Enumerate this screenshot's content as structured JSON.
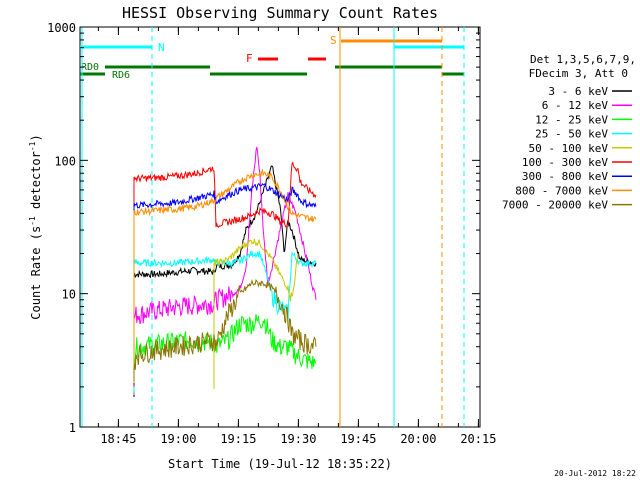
{
  "chart_data": {
    "type": "line",
    "title": "HESSI Observing Summary Count Rates",
    "xlabel": "Start Time (19-Jul-12 18:35:22)",
    "ylabel_main": "Count Rate (s",
    "ylabel_sup1": "-1",
    "ylabel_mid": " detector",
    "ylabel_sup2": "-1",
    "ylabel_end": ")",
    "yscale": "log",
    "ylim": [
      1,
      1000
    ],
    "xlim_minutes": [
      0,
      100
    ],
    "x_tick_labels": [
      "18:45",
      "19:00",
      "19:15",
      "19:30",
      "19:45",
      "20:00",
      "20:15"
    ],
    "x_ticks_minutes": [
      9.6,
      24.6,
      39.6,
      54.6,
      69.6,
      84.6,
      99.6
    ],
    "y_tick_labels": [
      "1",
      "10",
      "100",
      "1000"
    ],
    "y_ticks": [
      1,
      10,
      100,
      1000
    ],
    "legend_header": [
      "Det 1,3,5,6,7,9,",
      "FDecim 3, Att 0"
    ],
    "series": [
      {
        "name": "3 - 6 keV",
        "color": "#000000",
        "x": [
          13.5,
          14,
          19,
          19.5,
          24,
          29,
          33.5,
          34,
          38,
          40,
          41.5,
          44,
          46,
          48,
          50,
          50.6,
          51,
          52,
          53,
          54.6,
          55,
          59
        ],
        "y": [
          14,
          14,
          14,
          14,
          14.5,
          15,
          14.5,
          16,
          16.5,
          20,
          30,
          40,
          60,
          90,
          45,
          30,
          20,
          35,
          30,
          20,
          18,
          17
        ]
      },
      {
        "name": "6 - 12 keV",
        "color": "#ff00ff",
        "x": [
          13.5,
          14,
          19,
          24,
          29,
          33.5,
          34,
          38,
          40,
          41.5,
          43,
          44.2,
          45,
          46,
          47,
          48,
          50,
          52,
          54,
          56,
          58,
          59
        ],
        "y": [
          6.5,
          7,
          7.5,
          8,
          8.3,
          8.5,
          9,
          10,
          11,
          16,
          60,
          130,
          75,
          25,
          12,
          16,
          30,
          55,
          40,
          22,
          12,
          9
        ]
      },
      {
        "name": "12 - 25 keV",
        "color": "#00ff00",
        "x": [
          13.5,
          14,
          19,
          24,
          29,
          33.5,
          34,
          37,
          40,
          43,
          46,
          48,
          50,
          52,
          54,
          56,
          59
        ],
        "y": [
          3.2,
          4,
          4.2,
          4.4,
          4.5,
          4.3,
          4,
          4.5,
          6,
          6,
          6.5,
          4.5,
          4,
          4,
          3.5,
          3.2,
          3
        ]
      },
      {
        "name": "25 - 50 keV",
        "color": "#00ffff",
        "x": [
          13.5,
          14,
          19,
          24,
          29,
          33.5,
          34,
          38,
          40,
          43,
          45,
          48,
          50,
          52,
          53,
          55,
          57,
          59
        ],
        "y": [
          17,
          17,
          17,
          17,
          17.5,
          18,
          17,
          17,
          17.5,
          20,
          20,
          10,
          8,
          7,
          20,
          17,
          17,
          17
        ]
      },
      {
        "name": "50 - 100 keV",
        "color": "#c8c800",
        "x": [
          33.5,
          34,
          37,
          40,
          43,
          45,
          48,
          50,
          52,
          53,
          54.5
        ],
        "y": [
          17,
          17,
          18,
          22,
          25,
          24,
          18,
          14,
          11,
          9,
          20
        ]
      },
      {
        "name": "100 - 300 keV",
        "color": "#ff0000",
        "x": [
          13.5,
          14,
          19,
          24,
          29,
          33.5,
          34,
          38,
          42,
          45,
          48,
          50,
          52,
          53,
          54.5,
          55,
          57,
          59
        ],
        "y": [
          75,
          73,
          74,
          76,
          80,
          88,
          33,
          35,
          38,
          42,
          40,
          35,
          33,
          95,
          85,
          70,
          60,
          55
        ]
      },
      {
        "name": "300 - 800 keV",
        "color": "#0000ff",
        "x": [
          13.5,
          14,
          19,
          24,
          29,
          33.5,
          34,
          37,
          40,
          43,
          46,
          48,
          50,
          52,
          53,
          54.5,
          55,
          57,
          59
        ],
        "y": [
          47,
          46,
          47,
          48,
          52,
          56,
          49,
          55,
          60,
          62,
          65,
          60,
          55,
          50,
          60,
          55,
          50,
          47,
          45
        ]
      },
      {
        "name": "800 - 7000 keV",
        "color": "#ff8c00",
        "x": [
          13.5,
          14,
          19,
          24,
          29,
          33.5,
          34,
          37,
          40,
          43,
          46,
          48,
          50,
          52,
          53,
          55,
          57,
          59
        ],
        "y": [
          42,
          41,
          42,
          43,
          45,
          50,
          52,
          60,
          70,
          78,
          80,
          75,
          60,
          45,
          40,
          38,
          37,
          36
        ]
      },
      {
        "name": "7000 - 20000 keV",
        "color": "#8b7500",
        "x": [
          13.5,
          14,
          19,
          24,
          29,
          33.5,
          34,
          37,
          40,
          43,
          46,
          48,
          50,
          52,
          53,
          55,
          57,
          59
        ],
        "y": [
          2.8,
          3.5,
          3.8,
          4,
          4.3,
          4.5,
          4.2,
          7,
          10,
          12,
          12,
          11,
          9,
          6.5,
          5,
          4.5,
          4.2,
          4
        ]
      }
    ],
    "annotations": {
      "N_label": "N",
      "S_label": "S",
      "F_label": "F",
      "RD0_label": "RD0",
      "RD6_label": "RD6"
    },
    "footer_date": "20-Jul-2012 18:22"
  }
}
